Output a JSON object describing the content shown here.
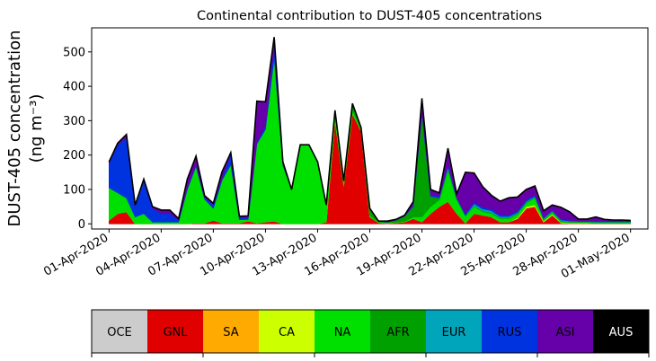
{
  "chart_data": {
    "type": "area",
    "stacked": true,
    "title": "Continental contribution to DUST-405 concentrations",
    "ylabel_line1": "DUST-405 concentration",
    "ylabel_line2": "(ng m⁻³)",
    "ylim": [
      -15,
      570
    ],
    "yticks": [
      0,
      100,
      200,
      300,
      400,
      500
    ],
    "x_start": "01-Apr-2020",
    "x_range_days": [
      -1,
      31
    ],
    "xtick_days": [
      0,
      3,
      6,
      9,
      12,
      15,
      18,
      21,
      24,
      27,
      30
    ],
    "xtick_labels": [
      "01-Apr-2020",
      "04-Apr-2020",
      "07-Apr-2020",
      "10-Apr-2020",
      "13-Apr-2020",
      "16-Apr-2020",
      "19-Apr-2020",
      "22-Apr-2020",
      "25-Apr-2020",
      "28-Apr-2020",
      "01-May-2020"
    ],
    "x_days": [
      0,
      0.5,
      1,
      1.5,
      2,
      2.5,
      3,
      3.5,
      4,
      4.5,
      5,
      5.5,
      6,
      6.5,
      7,
      7.5,
      8,
      8.5,
      9,
      9.5,
      10,
      10.5,
      11,
      11.5,
      12,
      12.5,
      13,
      13.5,
      14,
      14.5,
      15,
      15.5,
      16,
      16.5,
      17,
      17.5,
      18,
      18.5,
      19,
      19.5,
      20,
      20.5,
      21,
      21.5,
      22,
      22.5,
      23,
      23.5,
      24,
      24.5,
      25,
      25.5,
      26,
      26.5,
      27,
      27.5,
      28,
      28.5,
      29,
      29.5,
      30
    ],
    "series": [
      {
        "name": "GNL",
        "color": "#e00000",
        "values": [
          10,
          30,
          35,
          0,
          0,
          0,
          0,
          0,
          0,
          0,
          2,
          2,
          10,
          2,
          2,
          2,
          8,
          2,
          5,
          8,
          0,
          0,
          0,
          0,
          0,
          5,
          300,
          110,
          320,
          270,
          20,
          3,
          1,
          3,
          5,
          15,
          5,
          30,
          50,
          65,
          30,
          2,
          30,
          25,
          20,
          5,
          5,
          15,
          45,
          50,
          5,
          25,
          2,
          1,
          1,
          1,
          1,
          1,
          1,
          1,
          1
        ]
      },
      {
        "name": "CA",
        "color": "#ccff00",
        "values": [
          0,
          0,
          0,
          0,
          0,
          0,
          0,
          0,
          0,
          0,
          0,
          0,
          0,
          0,
          0,
          0,
          0,
          0,
          0,
          0,
          0,
          0,
          0,
          0,
          0,
          0,
          0,
          0,
          0,
          0,
          0,
          0,
          0,
          0,
          0,
          0,
          0,
          0,
          0,
          0,
          0,
          0,
          0,
          0,
          0,
          0,
          0,
          3,
          5,
          5,
          3,
          3,
          2,
          1,
          1,
          1,
          0,
          0,
          0,
          0,
          0
        ]
      },
      {
        "name": "NA",
        "color": "#00e000",
        "values": [
          95,
          60,
          40,
          20,
          30,
          5,
          5,
          5,
          5,
          100,
          165,
          70,
          35,
          125,
          170,
          10,
          5,
          230,
          270,
          475,
          170,
          100,
          230,
          230,
          180,
          50,
          20,
          15,
          10,
          5,
          5,
          2,
          2,
          2,
          2,
          5,
          15,
          20,
          20,
          90,
          40,
          20,
          20,
          10,
          10,
          10,
          10,
          10,
          10,
          20,
          3,
          5,
          2,
          2,
          2,
          2,
          2,
          2,
          2,
          2,
          2
        ]
      },
      {
        "name": "AFR",
        "color": "#00a000",
        "values": [
          0,
          0,
          0,
          0,
          0,
          0,
          0,
          0,
          0,
          0,
          0,
          0,
          0,
          0,
          0,
          0,
          0,
          0,
          0,
          0,
          0,
          0,
          0,
          0,
          0,
          0,
          10,
          0,
          20,
          5,
          20,
          3,
          2,
          5,
          15,
          30,
          300,
          30,
          5,
          5,
          5,
          3,
          3,
          3,
          3,
          3,
          3,
          3,
          3,
          3,
          3,
          3,
          3,
          2,
          2,
          2,
          2,
          2,
          2,
          2,
          2
        ]
      },
      {
        "name": "EUR",
        "color": "#00a5bb",
        "values": [
          0,
          0,
          0,
          0,
          0,
          0,
          0,
          0,
          0,
          0,
          0,
          0,
          0,
          0,
          0,
          0,
          0,
          0,
          0,
          0,
          0,
          0,
          0,
          0,
          0,
          0,
          0,
          0,
          0,
          0,
          0,
          0,
          0,
          0,
          0,
          0,
          0,
          0,
          0,
          5,
          0,
          0,
          5,
          5,
          5,
          3,
          3,
          2,
          2,
          2,
          2,
          2,
          2,
          2,
          1,
          1,
          1,
          1,
          1,
          1,
          1
        ]
      },
      {
        "name": "RUS",
        "color": "#0033e0",
        "values": [
          70,
          140,
          175,
          30,
          95,
          40,
          25,
          25,
          5,
          5,
          5,
          5,
          10,
          5,
          30,
          5,
          5,
          5,
          10,
          35,
          5,
          0,
          0,
          0,
          0,
          0,
          0,
          0,
          0,
          0,
          0,
          0,
          0,
          0,
          0,
          5,
          5,
          5,
          5,
          5,
          2,
          5,
          5,
          5,
          5,
          5,
          5,
          5,
          5,
          5,
          2,
          2,
          2,
          2,
          2,
          2,
          2,
          2,
          2,
          2,
          2
        ]
      },
      {
        "name": "ASI",
        "color": "#6600a8",
        "values": [
          5,
          5,
          10,
          5,
          5,
          5,
          10,
          10,
          5,
          25,
          25,
          5,
          5,
          20,
          5,
          5,
          5,
          120,
          70,
          25,
          5,
          0,
          0,
          0,
          0,
          0,
          0,
          0,
          0,
          0,
          0,
          0,
          3,
          3,
          3,
          10,
          40,
          15,
          10,
          50,
          10,
          120,
          85,
          60,
          40,
          40,
          50,
          40,
          30,
          25,
          20,
          15,
          35,
          25,
          5,
          5,
          12,
          5,
          3,
          3,
          2
        ]
      }
    ],
    "colorbar": [
      {
        "label": "OCE",
        "color": "#cccccc",
        "text_color": "#000000"
      },
      {
        "label": "GNL",
        "color": "#e00000",
        "text_color": "#000000"
      },
      {
        "label": "SA",
        "color": "#ffaa00",
        "text_color": "#000000"
      },
      {
        "label": "CA",
        "color": "#ccff00",
        "text_color": "#000000"
      },
      {
        "label": "NA",
        "color": "#00e000",
        "text_color": "#000000"
      },
      {
        "label": "AFR",
        "color": "#00a000",
        "text_color": "#000000"
      },
      {
        "label": "EUR",
        "color": "#00a5bb",
        "text_color": "#000000"
      },
      {
        "label": "RUS",
        "color": "#0033e0",
        "text_color": "#000000"
      },
      {
        "label": "ASI",
        "color": "#6600a8",
        "text_color": "#000000"
      },
      {
        "label": "AUS",
        "color": "#000000",
        "text_color": "#ffffff"
      }
    ]
  }
}
